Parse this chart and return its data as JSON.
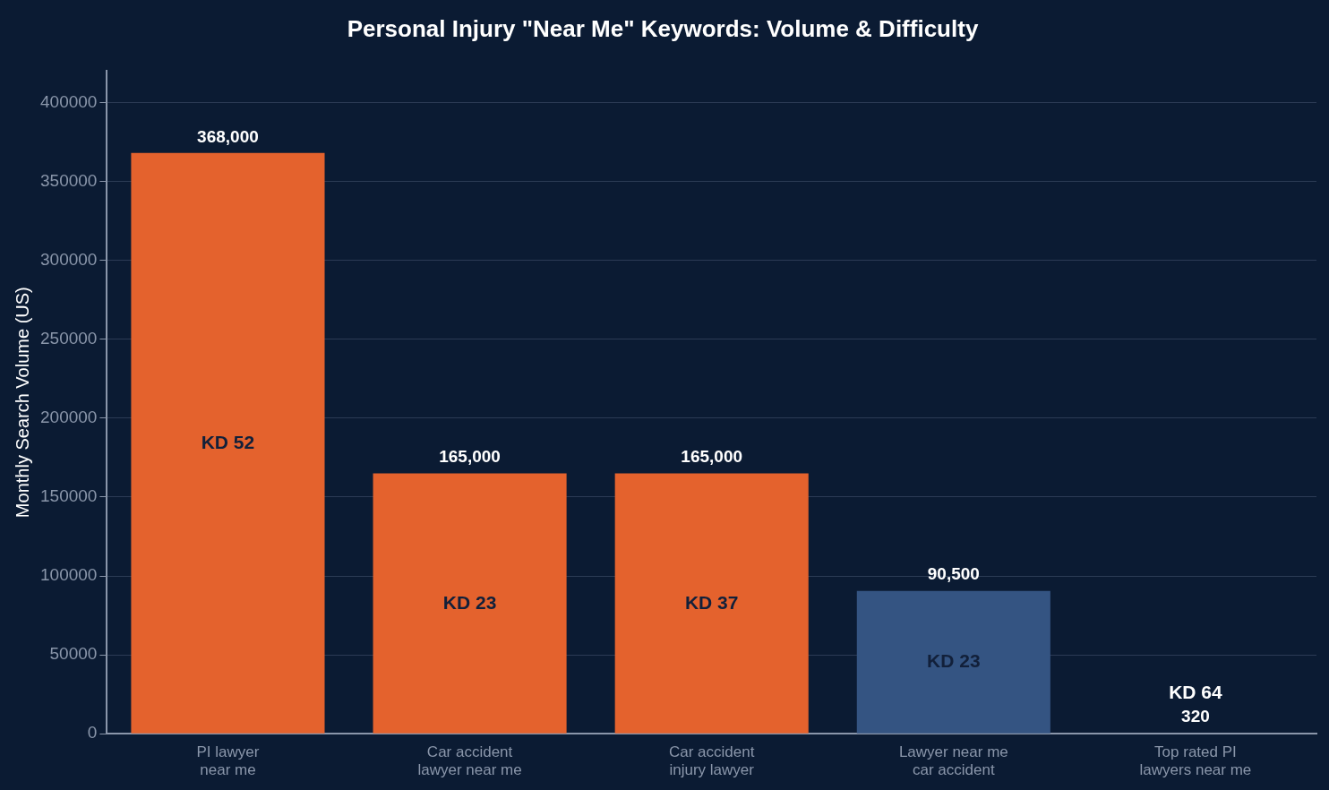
{
  "chart_data": {
    "type": "bar",
    "title": "Personal Injury \"Near Me\" Keywords: Volume & Difficulty",
    "ylabel": "Monthly Search Volume (US)",
    "categories": [
      "PI lawyer\nnear me",
      "Car accident\nlawyer near me",
      "Car accident\ninjury lawyer",
      "Lawyer near me\ncar accident",
      "Top rated PI\nlawyers near me"
    ],
    "values": [
      368000,
      165000,
      165000,
      90500,
      320
    ],
    "colors": [
      "#e4622d",
      "#e4622d",
      "#e4622d",
      "#345482",
      "#345482"
    ],
    "value_labels": [
      "368,000",
      "165,000",
      "165,000",
      "90,500",
      "320"
    ],
    "annotations": [
      "KD 52",
      "KD 23",
      "KD 37",
      "KD 23",
      "KD 64"
    ],
    "ylim": [
      0,
      420000
    ],
    "yticks": [
      0,
      50000,
      100000,
      150000,
      200000,
      250000,
      300000,
      350000,
      400000
    ],
    "grid": "y",
    "legend": false
  }
}
